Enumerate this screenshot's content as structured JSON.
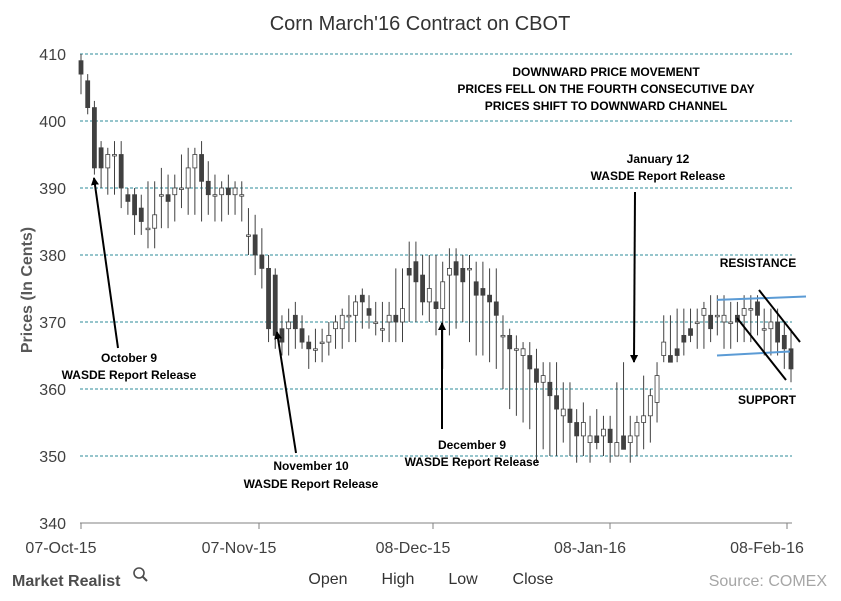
{
  "chart_data": {
    "type": "candlestick",
    "title": "Corn March'16 Contract on CBOT",
    "ylabel": "Prices (In Cents)",
    "ylim": [
      340,
      410
    ],
    "yticks": [
      340,
      350,
      360,
      370,
      380,
      390,
      400,
      410
    ],
    "grid": "horizontal-dashed",
    "x_tick_labels": [
      "07-Oct-15",
      "07-Nov-15",
      "08-Dec-15",
      "08-Jan-16",
      "08-Feb-16"
    ],
    "legend": [
      "Open",
      "High",
      "Low",
      "Close"
    ],
    "legend_placement": "bottom",
    "colors": {
      "up": "#ffffff",
      "down": "#404040",
      "wick": "#404040",
      "grid": "#2e8b9a",
      "channel": "#5b9bd5"
    },
    "series": [
      {
        "name": "Open",
        "values": [
          409,
          406,
          402,
          396,
          393,
          395,
          395,
          389,
          389,
          387,
          384,
          384,
          389,
          389,
          389,
          390,
          390,
          393,
          395,
          391,
          389,
          389,
          390,
          389,
          389,
          383,
          383,
          380,
          378,
          377,
          369,
          369,
          371,
          369,
          367,
          366,
          367,
          367,
          369,
          369,
          371,
          371,
          374,
          372,
          370,
          369,
          370,
          371,
          370,
          378,
          379,
          377,
          373,
          373,
          372,
          377,
          379,
          378,
          378,
          376,
          375,
          374,
          373,
          368,
          368,
          366,
          365,
          365,
          363,
          361,
          361,
          359,
          356,
          357,
          355,
          353,
          352,
          353,
          353,
          354,
          350,
          353,
          352,
          353,
          355,
          356,
          358,
          365,
          365,
          366,
          368,
          369,
          370,
          371,
          371,
          371,
          370,
          370,
          371,
          371,
          372,
          373,
          369,
          369,
          370,
          368,
          366
        ]
      },
      {
        "name": "High",
        "values": [
          410,
          407,
          403,
          397,
          396,
          397,
          397,
          390,
          390,
          389,
          391,
          391,
          393,
          392,
          392,
          395,
          396,
          396,
          397,
          394,
          392,
          391,
          392,
          391,
          391,
          387,
          386,
          384,
          380,
          378,
          371,
          372,
          373,
          371,
          368,
          369,
          369,
          370,
          371,
          372,
          374,
          374,
          375,
          374,
          373,
          373,
          373,
          378,
          378,
          382,
          382,
          380,
          380,
          380,
          379,
          381,
          381,
          380,
          380,
          379,
          379,
          378,
          378,
          371,
          369,
          368,
          367,
          367,
          366,
          364,
          364,
          364,
          361,
          361,
          357,
          358,
          356,
          357,
          356,
          356,
          361,
          364,
          356,
          356,
          362,
          360,
          364,
          371,
          371,
          372,
          372,
          372,
          372,
          373,
          374,
          374,
          374,
          373,
          373,
          374,
          374,
          374,
          372,
          372,
          372,
          370,
          369
        ]
      },
      {
        "name": "Low",
        "values": [
          404,
          401,
          392,
          390,
          389,
          389,
          387,
          386,
          383,
          383,
          381,
          381,
          384,
          384,
          385,
          387,
          386,
          386,
          385,
          386,
          385,
          385,
          386,
          386,
          385,
          380,
          377,
          375,
          367,
          366,
          365,
          365,
          366,
          366,
          363,
          364,
          364,
          365,
          366,
          366,
          367,
          367,
          369,
          369,
          368,
          367,
          367,
          367,
          367,
          370,
          370,
          371,
          370,
          368,
          363,
          368,
          369,
          370,
          367,
          365,
          365,
          364,
          363,
          360,
          357,
          356,
          355,
          354,
          349,
          351,
          350,
          350,
          352,
          350,
          349,
          350,
          349,
          351,
          350,
          349,
          350,
          351,
          349,
          350,
          351,
          352,
          355,
          364,
          365,
          364,
          365,
          367,
          366,
          366,
          367,
          368,
          366,
          366,
          367,
          367,
          367,
          368,
          365,
          365,
          365,
          363,
          361
        ]
      },
      {
        "name": "Close",
        "values": [
          407,
          402,
          393,
          393,
          395,
          395,
          390,
          388,
          386,
          385,
          384,
          386,
          389,
          388,
          390,
          390,
          393,
          395,
          391,
          389,
          389,
          390,
          389,
          390,
          389,
          383,
          380,
          378,
          369,
          368,
          367,
          370,
          369,
          367,
          366,
          366,
          367,
          368,
          370,
          371,
          371,
          373,
          373,
          371,
          370,
          369,
          371,
          370,
          372,
          377,
          376,
          373,
          375,
          372,
          376,
          378,
          377,
          376,
          378,
          374,
          374,
          373,
          371,
          368,
          366,
          366,
          366,
          363,
          361,
          362,
          359,
          357,
          357,
          355,
          353,
          355,
          353,
          352,
          354,
          352,
          352,
          351,
          353,
          355,
          356,
          359,
          362,
          367,
          364,
          365,
          367,
          368,
          370,
          372,
          369,
          371,
          371,
          370,
          370,
          372,
          372,
          371,
          369,
          370,
          367,
          366,
          363
        ]
      }
    ],
    "annotations": {
      "top_note": [
        "DOWNWARD PRICE MOVEMENT",
        "PRICES FELL ON THE FOURTH CONSECUTIVE DAY",
        "PRICES SHIFT TO DOWNWARD CHANNEL"
      ],
      "oct": [
        "October 9",
        "WASDE Report Release"
      ],
      "nov": [
        "November 10",
        "WASDE Report Release"
      ],
      "dec": [
        "December 9",
        "WASDE Report Release"
      ],
      "jan": [
        "January 12",
        "WASDE Report Release"
      ],
      "resistance": "RESISTANCE",
      "support": "SUPPORT"
    },
    "resistance_line": [
      373.3,
      373.8
    ],
    "support_line": [
      365.0,
      365.6
    ]
  },
  "brand": "Market Realist",
  "source": "Source: COMEX"
}
